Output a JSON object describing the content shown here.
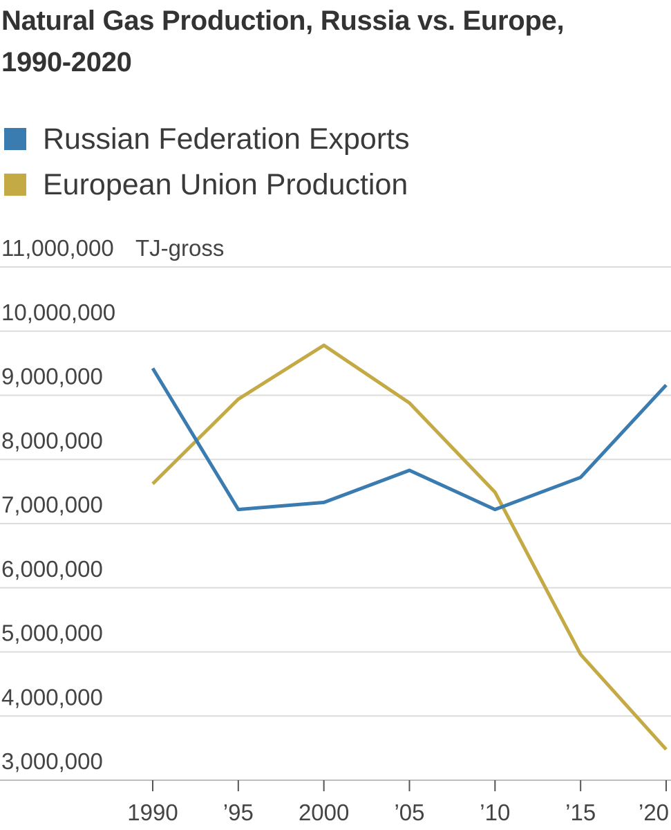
{
  "chart_data": {
    "type": "line",
    "title_lines": [
      "Natural Gas Production, Russia vs. Europe,",
      "1990-2020"
    ],
    "unit_label": "TJ-gross",
    "x": [
      1990,
      1995,
      2000,
      2005,
      2010,
      2015,
      2020
    ],
    "x_tick_labels": [
      "1990",
      "’95",
      "2000",
      "’05",
      "’10",
      "’15",
      "’20"
    ],
    "y_tick_labels": [
      "11,000,000",
      "10,000,000",
      "9,000,000",
      "8,000,000",
      "7,000,000",
      "6,000,000",
      "5,000,000",
      "4,000,000",
      "3,000,000"
    ],
    "y_ticks": [
      11000000,
      10000000,
      9000000,
      8000000,
      7000000,
      6000000,
      5000000,
      4000000,
      3000000
    ],
    "ylim": [
      3000000,
      11000000
    ],
    "grid": true,
    "legend_position": "top-left",
    "series": [
      {
        "name": "Russian Federation Exports",
        "color": "#3a7bb0",
        "values": [
          9420000,
          7220000,
          7330000,
          7830000,
          7220000,
          7720000,
          9160000
        ]
      },
      {
        "name": "European Union Production",
        "color": "#c4aa45",
        "values": [
          7620000,
          8940000,
          9780000,
          8880000,
          7490000,
          4960000,
          3480000
        ]
      }
    ]
  }
}
